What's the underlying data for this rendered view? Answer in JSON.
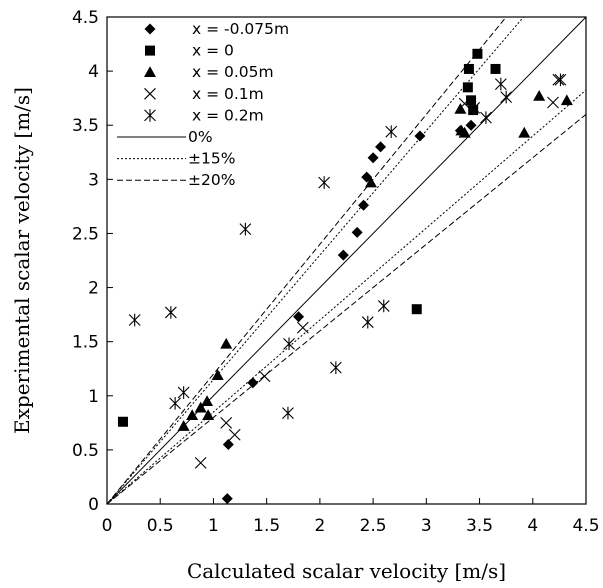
{
  "chart_data": {
    "type": "scatter",
    "title": "",
    "xlabel": "Calculated scalar velocity [m/s]",
    "ylabel": "Experimental scalar velocity [m/s]",
    "xlim": [
      0,
      4.5
    ],
    "ylim": [
      0,
      4.5
    ],
    "xticks": [
      "0",
      "0.5",
      "1",
      "1.5",
      "2",
      "2.5",
      "3",
      "3.5",
      "4",
      "4.5"
    ],
    "yticks": [
      "0",
      "0.5",
      "1",
      "1.5",
      "2",
      "2.5",
      "3",
      "3.5",
      "4",
      "4.5"
    ],
    "grid": false,
    "legend_position": "top-left",
    "series": [
      {
        "name": "x = -0.075m",
        "marker": "diamond",
        "points": [
          [
            1.13,
            0.05
          ],
          [
            1.14,
            0.55
          ],
          [
            1.37,
            1.12
          ],
          [
            1.8,
            1.73
          ],
          [
            2.22,
            2.3
          ],
          [
            2.35,
            2.51
          ],
          [
            2.41,
            2.76
          ],
          [
            2.44,
            3.02
          ],
          [
            2.5,
            3.2
          ],
          [
            2.57,
            3.3
          ],
          [
            2.94,
            3.4
          ],
          [
            3.32,
            3.45
          ],
          [
            3.42,
            3.5
          ]
        ]
      },
      {
        "name": "x = 0",
        "marker": "square",
        "points": [
          [
            0.15,
            0.76
          ],
          [
            2.91,
            1.8
          ],
          [
            3.39,
            3.85
          ],
          [
            3.4,
            4.02
          ],
          [
            3.42,
            3.73
          ],
          [
            3.44,
            3.64
          ],
          [
            3.48,
            4.16
          ],
          [
            3.65,
            4.02
          ]
        ]
      },
      {
        "name": "x = 0.05m",
        "marker": "triangle",
        "points": [
          [
            0.72,
            0.72
          ],
          [
            0.8,
            0.82
          ],
          [
            0.88,
            0.89
          ],
          [
            0.94,
            0.95
          ],
          [
            0.95,
            0.82
          ],
          [
            1.04,
            1.19
          ],
          [
            1.12,
            1.48
          ],
          [
            2.48,
            2.97
          ],
          [
            3.32,
            3.65
          ],
          [
            3.33,
            3.45
          ],
          [
            3.36,
            3.43
          ],
          [
            3.92,
            3.43
          ],
          [
            4.06,
            3.77
          ],
          [
            4.32,
            3.73
          ]
        ]
      },
      {
        "name": "x = 0.1m",
        "marker": "x",
        "points": [
          [
            0.88,
            0.38
          ],
          [
            1.12,
            0.75
          ],
          [
            1.2,
            0.64
          ],
          [
            1.48,
            1.18
          ],
          [
            1.84,
            1.63
          ],
          [
            3.36,
            3.7
          ],
          [
            3.45,
            3.66
          ],
          [
            4.19,
            3.71
          ],
          [
            4.24,
            3.92
          ]
        ]
      },
      {
        "name": "x = 0.2m",
        "marker": "asterisk",
        "points": [
          [
            0.26,
            1.7
          ],
          [
            0.6,
            1.77
          ],
          [
            0.64,
            0.93
          ],
          [
            0.72,
            1.03
          ],
          [
            1.3,
            2.54
          ],
          [
            1.7,
            0.84
          ],
          [
            1.71,
            1.48
          ],
          [
            2.04,
            2.97
          ],
          [
            2.15,
            1.26
          ],
          [
            2.45,
            1.68
          ],
          [
            2.6,
            1.83
          ],
          [
            2.67,
            3.44
          ],
          [
            3.56,
            3.57
          ],
          [
            3.7,
            3.88
          ],
          [
            3.75,
            3.76
          ],
          [
            4.26,
            3.92
          ]
        ]
      }
    ],
    "reference_lines": [
      {
        "name": "0%",
        "style": "solid",
        "factors": [
          1.0
        ]
      },
      {
        "name": "±15%",
        "style": "dotted",
        "factors": [
          1.15,
          0.85
        ]
      },
      {
        "name": "±20%",
        "style": "dashed",
        "factors": [
          1.2,
          0.8
        ]
      }
    ]
  }
}
